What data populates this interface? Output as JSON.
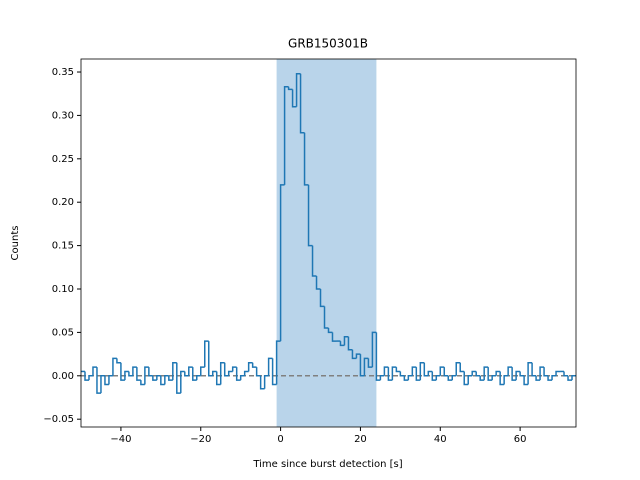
{
  "chart_data": {
    "type": "step",
    "title": "GRB150301B",
    "x_label": "Time since burst detection [s]",
    "y_label": "Counts",
    "x": [
      -50,
      -49,
      -48,
      -47,
      -46,
      -45,
      -44,
      -43,
      -42,
      -41,
      -40,
      -39,
      -38,
      -37,
      -36,
      -35,
      -34,
      -33,
      -32,
      -31,
      -30,
      -29,
      -28,
      -27,
      -26,
      -25,
      -24,
      -23,
      -22,
      -21,
      -20,
      -19,
      -18,
      -17,
      -16,
      -15,
      -14,
      -13,
      -12,
      -11,
      -10,
      -9,
      -8,
      -7,
      -6,
      -5,
      -4,
      -3,
      -2,
      -1,
      0,
      1,
      2,
      3,
      4,
      5,
      6,
      7,
      8,
      9,
      10,
      11,
      12,
      13,
      14,
      15,
      16,
      17,
      18,
      19,
      20,
      21,
      22,
      23,
      24,
      25,
      26,
      27,
      28,
      29,
      30,
      31,
      32,
      33,
      34,
      35,
      36,
      37,
      38,
      39,
      40,
      41,
      42,
      43,
      44,
      45,
      46,
      47,
      48,
      49,
      50,
      51,
      52,
      53,
      54,
      55,
      56,
      57,
      58,
      59,
      60,
      61,
      62,
      63,
      64,
      65,
      66,
      67,
      68,
      69,
      70,
      71,
      72,
      73
    ],
    "series": [
      {
        "color": "#1f77b4",
        "values": [
          0.005,
          -0.005,
          0.0,
          0.01,
          -0.02,
          0.0,
          -0.01,
          0.0,
          0.02,
          0.015,
          -0.005,
          0.005,
          0.0,
          0.01,
          -0.005,
          -0.01,
          0.01,
          0.0,
          -0.005,
          0.0,
          -0.01,
          0.0,
          -0.005,
          0.015,
          -0.02,
          0.005,
          0.0,
          0.01,
          -0.005,
          0.0,
          0.01,
          0.04,
          0.0,
          0.005,
          -0.01,
          0.015,
          0.0,
          0.005,
          0.01,
          -0.005,
          0.0,
          0.005,
          0.015,
          0.01,
          0.0,
          -0.015,
          0.0,
          0.02,
          -0.01,
          0.04,
          0.22,
          0.333,
          0.33,
          0.31,
          0.348,
          0.28,
          0.22,
          0.15,
          0.115,
          0.1,
          0.08,
          0.055,
          0.05,
          0.04,
          0.04,
          0.035,
          0.045,
          0.03,
          0.02,
          0.025,
          0.0,
          0.02,
          0.01,
          0.05,
          -0.005,
          0.0,
          0.01,
          -0.005,
          0.01,
          0.005,
          0.0,
          -0.005,
          0.0,
          0.01,
          -0.005,
          0.015,
          0.0,
          0.005,
          -0.005,
          0.0,
          0.01,
          0.0,
          -0.005,
          0.0,
          0.015,
          0.005,
          -0.01,
          0.0,
          0.005,
          0.0,
          -0.005,
          0.01,
          -0.005,
          0.0,
          0.005,
          -0.01,
          0.0,
          0.01,
          -0.005,
          0.005,
          0.0,
          -0.01,
          0.015,
          0.0,
          -0.005,
          0.01,
          0.0,
          -0.005,
          0.0,
          0.005,
          0.005,
          0.0,
          -0.005,
          0.0
        ]
      }
    ],
    "shaded_region": [
      -1,
      24
    ],
    "shade_color": "#b9d4ea",
    "baseline": 0,
    "baseline_color": "#808080",
    "xlim": [
      -50,
      74
    ],
    "ylim": [
      -0.059,
      0.365
    ],
    "xticks": [
      {
        "value": -40,
        "label": "−40"
      },
      {
        "value": -20,
        "label": "−20"
      },
      0,
      20,
      40,
      60
    ],
    "yticks": [
      {
        "value": -0.05,
        "label": "−0.05"
      },
      {
        "value": 0,
        "label": "0.00"
      },
      {
        "value": 0.05,
        "label": "0.05"
      },
      {
        "value": 0.1,
        "label": "0.10"
      },
      {
        "value": 0.15,
        "label": "0.15"
      },
      {
        "value": 0.2,
        "label": "0.20"
      },
      {
        "value": 0.25,
        "label": "0.25"
      },
      {
        "value": 0.3,
        "label": "0.30"
      },
      {
        "value": 0.35,
        "label": "0.35"
      }
    ]
  }
}
